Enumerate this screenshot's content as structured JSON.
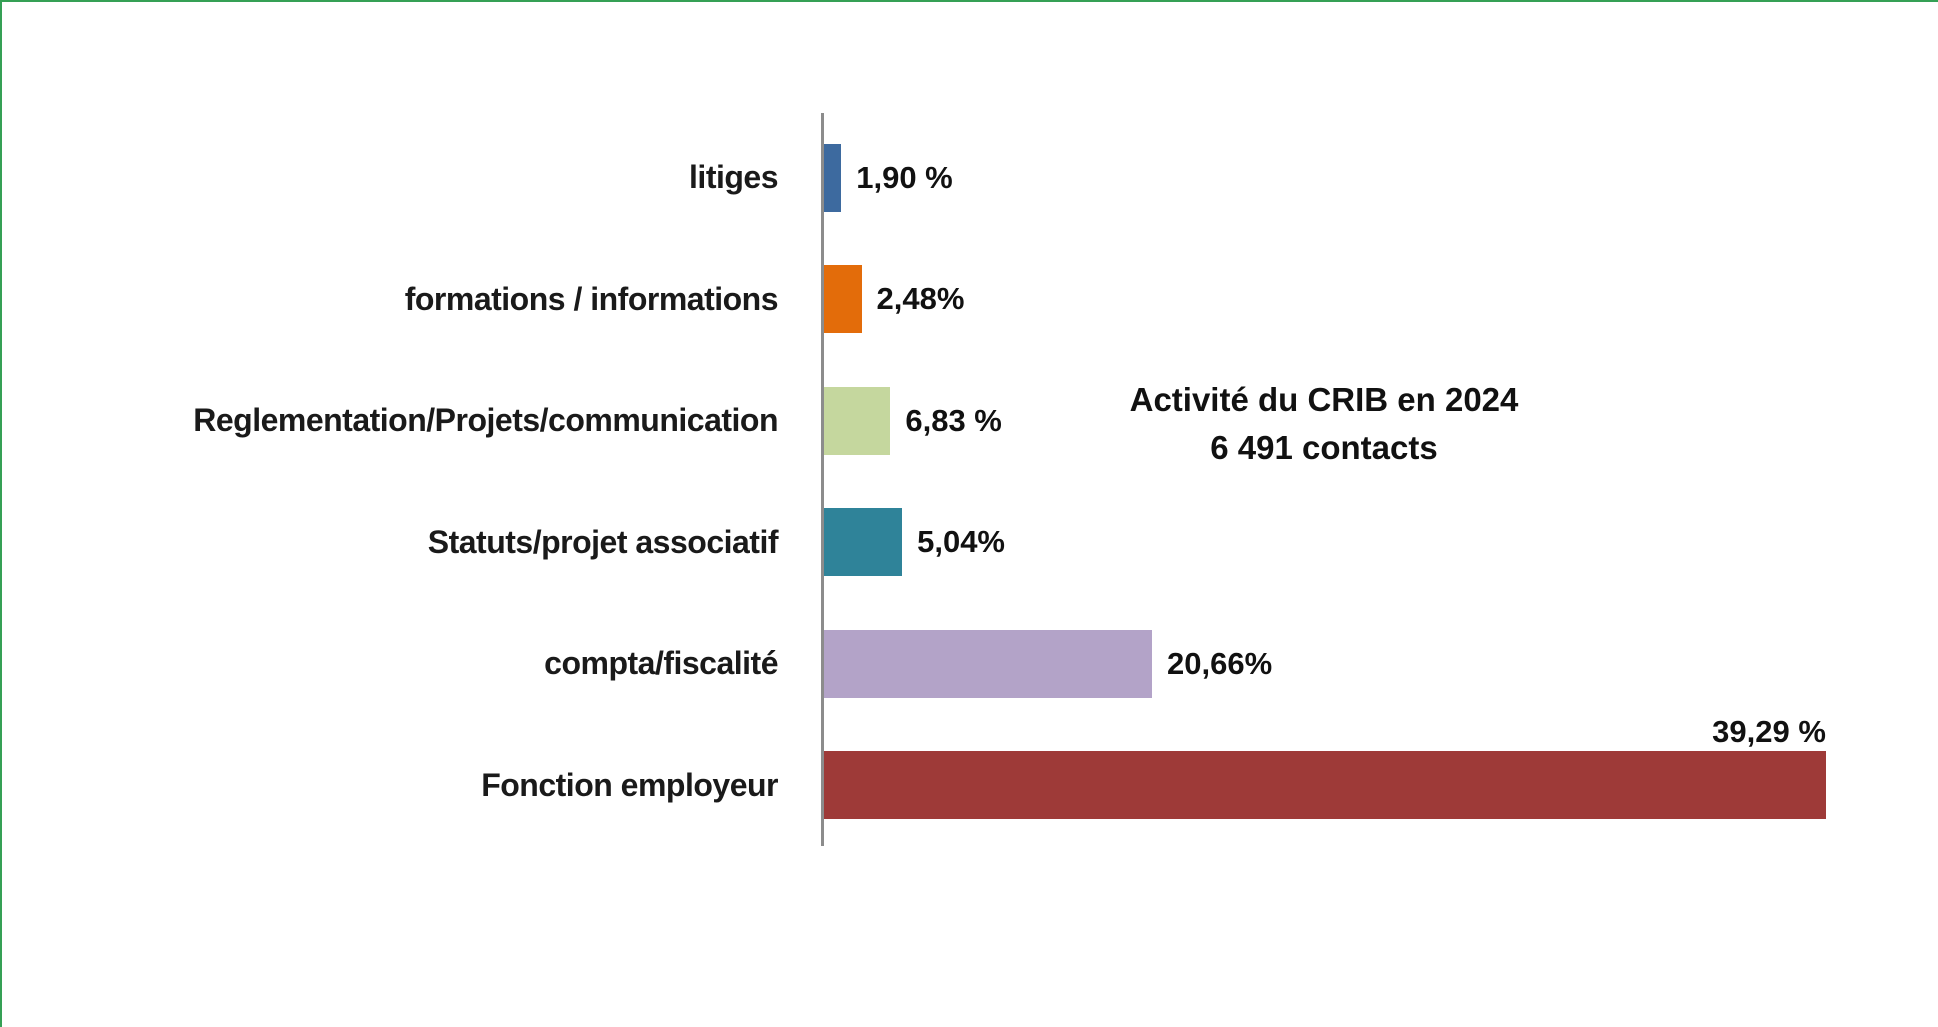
{
  "title": {
    "line1": "Activité du CRIB en 2024",
    "line2": "6 491 contacts"
  },
  "chart_data": {
    "type": "bar",
    "orientation": "horizontal",
    "title": "Activité du CRIB en 2024",
    "subtitle": "6 491 contacts",
    "grid": false,
    "legend": false,
    "x_axis_visible": false,
    "categories": [
      "litiges",
      "formations / informations",
      "Reglementation/Projets/communication",
      "Statuts/projet associatif",
      "compta/fiscalité",
      "Fonction employeur"
    ],
    "values": [
      1.9,
      2.48,
      6.83,
      5.04,
      20.66,
      39.29
    ],
    "value_labels": [
      "1,90 %",
      "2,48%",
      "6,83 %",
      "5,04%",
      "20,66%",
      "39,29 %"
    ],
    "colors": [
      "#3d6a9f",
      "#e36c0a",
      "#c5d79e",
      "#2f8399",
      "#b3a3c8",
      "#9e3a38"
    ],
    "visual_length_pct": [
      1.8,
      3.7,
      6.4,
      7.5,
      30.9,
      94.0
    ],
    "label_above": [
      false,
      false,
      false,
      false,
      false,
      true
    ],
    "axis_color": "#8c8c8c",
    "frame_color": "#35a055",
    "text_color": "#111111"
  }
}
